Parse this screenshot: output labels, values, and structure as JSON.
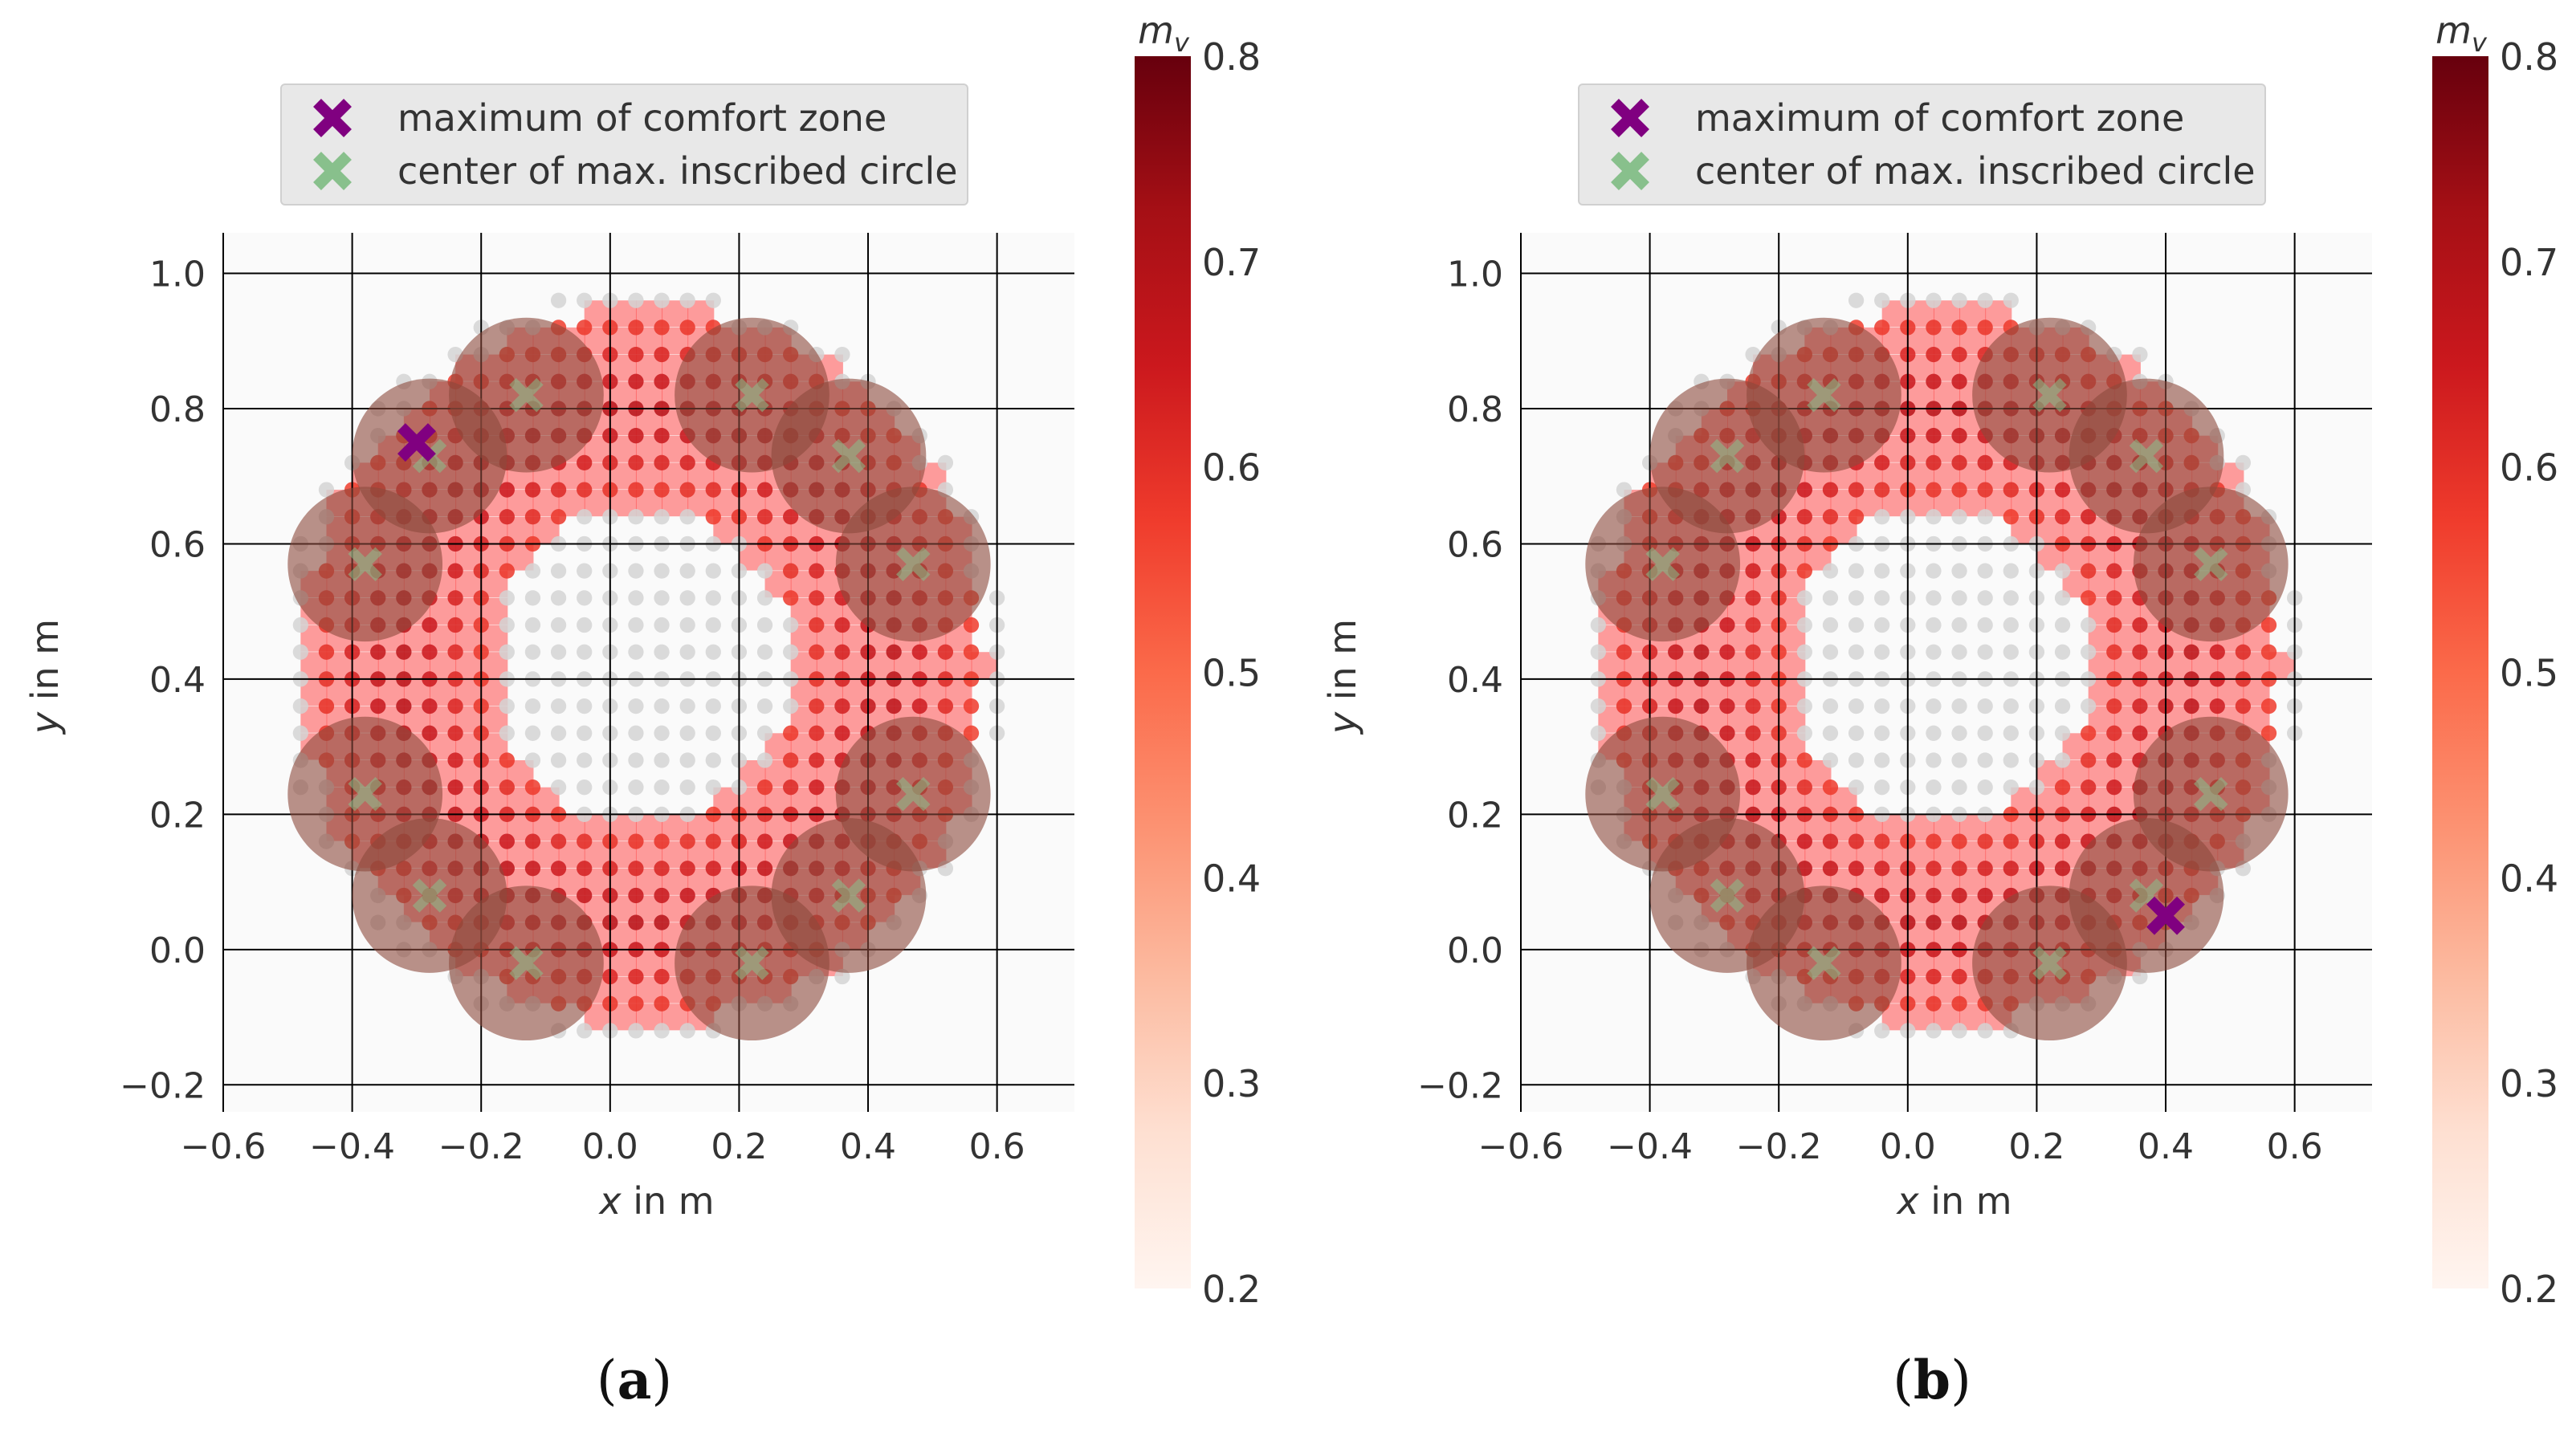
{
  "chart_data": [
    {
      "type": "scatter",
      "panel": "a",
      "caption": {
        "open": "(",
        "letter": "a",
        "close": ")"
      },
      "xlabel": {
        "var": "x",
        "unit": " in m"
      },
      "ylabel": {
        "var": "y",
        "unit": " in m"
      },
      "xlim": [
        -0.6,
        0.72
      ],
      "ylim": [
        -0.24,
        1.06
      ],
      "xticks": [
        -0.6,
        -0.4,
        -0.2,
        0.0,
        0.2,
        0.4,
        0.6
      ],
      "xtick_labels": [
        "−0.6",
        "−0.4",
        "−0.2",
        "0.0",
        "0.2",
        "0.4",
        "0.6"
      ],
      "yticks": [
        -0.2,
        0.0,
        0.2,
        0.4,
        0.6,
        0.8,
        1.0
      ],
      "ytick_labels": [
        "−0.2",
        "0.0",
        "0.2",
        "0.4",
        "0.6",
        "0.8",
        "1.0"
      ],
      "grid": true,
      "ring": {
        "center": [
          0.05,
          0.42
        ],
        "r_inner": 0.24,
        "r_outer": 0.52,
        "r_samples": 0.56
      },
      "comfort_max": {
        "x": -0.3,
        "y": 0.75
      },
      "inscribed_centers": [
        {
          "x": -0.13,
          "y": 0.82
        },
        {
          "x": 0.22,
          "y": 0.82
        },
        {
          "x": -0.28,
          "y": 0.73
        },
        {
          "x": 0.37,
          "y": 0.73
        },
        {
          "x": -0.38,
          "y": 0.57
        },
        {
          "x": 0.47,
          "y": 0.57
        },
        {
          "x": -0.38,
          "y": 0.23
        },
        {
          "x": 0.47,
          "y": 0.23
        },
        {
          "x": -0.28,
          "y": 0.08
        },
        {
          "x": 0.37,
          "y": 0.08
        },
        {
          "x": -0.13,
          "y": -0.02
        },
        {
          "x": 0.22,
          "y": -0.02
        }
      ],
      "inscribed_radius": 0.12,
      "legend": [
        {
          "label": "maximum of comfort zone",
          "color": "#800080"
        },
        {
          "label": "center of max. inscribed circle",
          "color": "#88c08c"
        }
      ],
      "colorbar": {
        "title": "m",
        "subscript": "v",
        "range": [
          0.2,
          0.8
        ],
        "ticks": [
          "0.2",
          "0.3",
          "0.4",
          "0.5",
          "0.6",
          "0.7",
          "0.8"
        ],
        "colormap": "Reds"
      }
    },
    {
      "type": "scatter",
      "panel": "b",
      "caption": {
        "open": "(",
        "letter": "b",
        "close": ")"
      },
      "xlabel": {
        "var": "x",
        "unit": " in m"
      },
      "ylabel": {
        "var": "y",
        "unit": " in m"
      },
      "xlim": [
        -0.6,
        0.72
      ],
      "ylim": [
        -0.24,
        1.06
      ],
      "xticks": [
        -0.6,
        -0.4,
        -0.2,
        0.0,
        0.2,
        0.4,
        0.6
      ],
      "xtick_labels": [
        "−0.6",
        "−0.4",
        "−0.2",
        "0.0",
        "0.2",
        "0.4",
        "0.6"
      ],
      "yticks": [
        -0.2,
        0.0,
        0.2,
        0.4,
        0.6,
        0.8,
        1.0
      ],
      "ytick_labels": [
        "−0.2",
        "0.0",
        "0.2",
        "0.4",
        "0.6",
        "0.8",
        "1.0"
      ],
      "grid": true,
      "ring": {
        "center": [
          0.05,
          0.42
        ],
        "r_inner": 0.24,
        "r_outer": 0.52,
        "r_samples": 0.56
      },
      "comfort_max": {
        "x": 0.4,
        "y": 0.05
      },
      "inscribed_centers": [
        {
          "x": -0.13,
          "y": 0.82
        },
        {
          "x": 0.22,
          "y": 0.82
        },
        {
          "x": -0.28,
          "y": 0.73
        },
        {
          "x": 0.37,
          "y": 0.73
        },
        {
          "x": -0.38,
          "y": 0.57
        },
        {
          "x": 0.47,
          "y": 0.57
        },
        {
          "x": -0.38,
          "y": 0.23
        },
        {
          "x": 0.47,
          "y": 0.23
        },
        {
          "x": -0.28,
          "y": 0.08
        },
        {
          "x": 0.37,
          "y": 0.08
        },
        {
          "x": -0.13,
          "y": -0.02
        },
        {
          "x": 0.22,
          "y": -0.02
        }
      ],
      "inscribed_radius": 0.12,
      "legend": [
        {
          "label": "maximum of comfort zone",
          "color": "#800080"
        },
        {
          "label": "center of max. inscribed circle",
          "color": "#88c08c"
        }
      ],
      "colorbar": {
        "title": "m",
        "subscript": "v",
        "range": [
          0.2,
          0.8
        ],
        "ticks": [
          "0.2",
          "0.3",
          "0.4",
          "0.5",
          "0.6",
          "0.7",
          "0.8"
        ],
        "colormap": "Reds"
      }
    }
  ]
}
